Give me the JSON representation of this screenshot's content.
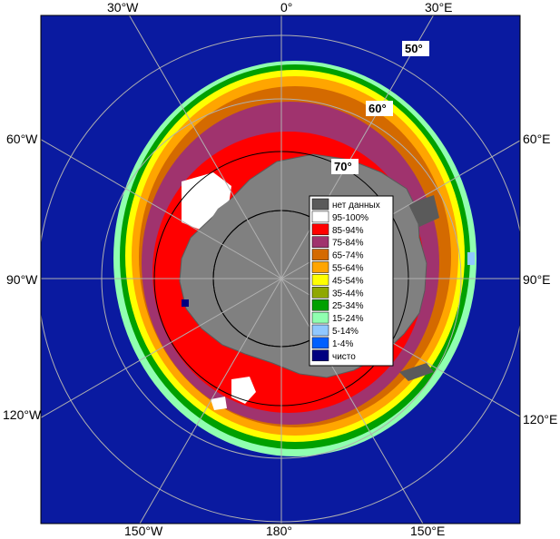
{
  "longitude_labels": {
    "w30": "30°W",
    "zero": "0°",
    "e30": "30°E",
    "w60": "60°W",
    "e60": "60°E",
    "w90": "90°W",
    "e90": "90°E",
    "w120": "120°W",
    "e120": "120°E",
    "w150": "150°W",
    "d180": "180°",
    "e150": "150°E"
  },
  "latitude_labels": {
    "lat50": "50°",
    "lat60": "60°",
    "lat70": "70°"
  },
  "legend": {
    "items": [
      {
        "label": "нет данных",
        "color": "#5a5a5a"
      },
      {
        "label": "95-100%",
        "color": "#ffffff"
      },
      {
        "label": "85-94%",
        "color": "#ff0000"
      },
      {
        "label": "75-84%",
        "color": "#a0336e"
      },
      {
        "label": "65-74%",
        "color": "#d46a00"
      },
      {
        "label": "55-64%",
        "color": "#ffa500"
      },
      {
        "label": "45-54%",
        "color": "#ffff00"
      },
      {
        "label": "35-44%",
        "color": "#8fa800"
      },
      {
        "label": "25-34%",
        "color": "#00a000"
      },
      {
        "label": "15-24%",
        "color": "#90ffb0"
      },
      {
        "label": "5-14%",
        "color": "#90c8ff"
      },
      {
        "label": "1-4%",
        "color": "#0060ff"
      },
      {
        "label": "чисто",
        "color": "#000080"
      }
    ]
  },
  "colors": {
    "ocean": "#0a1aa0",
    "land": "#808080",
    "no_data": "#5a5a5a",
    "grid": "#b0b0b0"
  }
}
